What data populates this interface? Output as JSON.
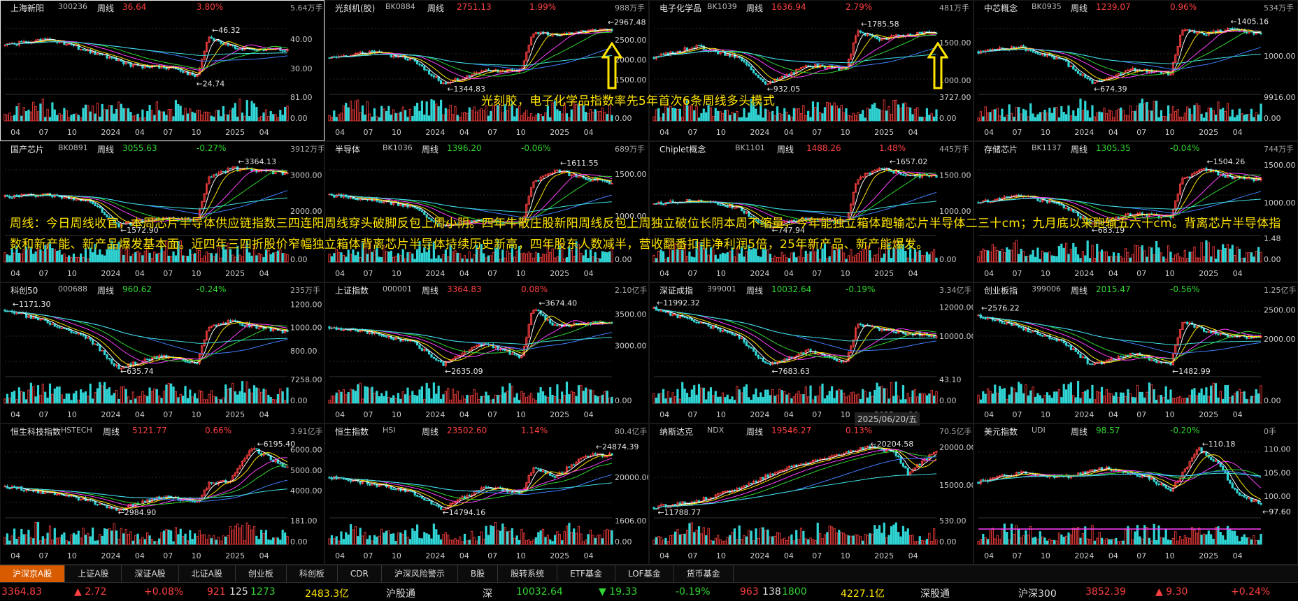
{
  "panels": [
    {
      "name": "上海新阳",
      "code": "300236",
      "period": "周线",
      "price": "36.64",
      "change": "3.80%",
      "dir": "up",
      "vol": "5.64万手",
      "hi": "46.32",
      "lo": "24.74",
      "yticks": [
        "40.00",
        "30.00"
      ],
      "vticks": [
        "81.00",
        "0.00"
      ],
      "xticks": [
        "04",
        "07",
        "10",
        "2024",
        "04",
        "07",
        "10",
        "2025",
        "04"
      ],
      "trend": [
        [
          0,
          38
        ],
        [
          0.15,
          40
        ],
        [
          0.3,
          36
        ],
        [
          0.45,
          31
        ],
        [
          0.6,
          30
        ],
        [
          0.68,
          27
        ],
        [
          0.72,
          41
        ],
        [
          0.78,
          38
        ],
        [
          0.88,
          36
        ],
        [
          1,
          36.6
        ]
      ],
      "ymin": 22,
      "ymax": 48
    },
    {
      "name": "光刻机(胶)",
      "code": "BK0884",
      "period": "周线",
      "price": "2751.13",
      "change": "1.99%",
      "dir": "up",
      "vol": "988万手",
      "hi": "2967.48",
      "lo": "1344.83",
      "yticks": [
        "2500.00",
        "2000.00",
        "1500.00"
      ],
      "vticks": [
        "0.00"
      ],
      "xticks": [
        "04",
        "07",
        "10",
        "2024",
        "04",
        "07",
        "10",
        "2025",
        "04"
      ],
      "trend": [
        [
          0,
          2050
        ],
        [
          0.15,
          2200
        ],
        [
          0.3,
          2000
        ],
        [
          0.4,
          1400
        ],
        [
          0.55,
          1700
        ],
        [
          0.68,
          1750
        ],
        [
          0.72,
          2700
        ],
        [
          0.8,
          2600
        ],
        [
          0.9,
          2700
        ],
        [
          1,
          2751
        ]
      ],
      "ymin": 1200,
      "ymax": 3100
    },
    {
      "name": "电子化学品",
      "code": "BK1039",
      "period": "周线",
      "price": "1636.94",
      "change": "2.79%",
      "dir": "up",
      "vol": "481万手",
      "hi": "1785.58",
      "lo": "932.05",
      "yticks": [
        "1500.00",
        "1000.00"
      ],
      "vticks": [
        "3727.00",
        "0.00"
      ],
      "xticks": [
        "04",
        "07",
        "10",
        "2024",
        "04",
        "07",
        "10",
        "2025",
        "04"
      ],
      "trend": [
        [
          0,
          1300
        ],
        [
          0.15,
          1450
        ],
        [
          0.3,
          1300
        ],
        [
          0.4,
          950
        ],
        [
          0.55,
          1200
        ],
        [
          0.68,
          1150
        ],
        [
          0.72,
          1650
        ],
        [
          0.8,
          1550
        ],
        [
          0.9,
          1600
        ],
        [
          1,
          1637
        ]
      ],
      "ymin": 850,
      "ymax": 1850
    },
    {
      "name": "中芯概念",
      "code": "BK0935",
      "period": "周线",
      "price": "1239.07",
      "change": "0.96%",
      "dir": "up",
      "vol": "534万手",
      "hi": "1405.16",
      "lo": "674.39",
      "yticks": [
        "1000.00"
      ],
      "vticks": [
        "9916.00",
        "0.00"
      ],
      "xticks": [
        "04",
        "07",
        "10",
        "2024",
        "04",
        "07",
        "10",
        "2025",
        "04"
      ],
      "trend": [
        [
          0,
          1050
        ],
        [
          0.15,
          1100
        ],
        [
          0.3,
          950
        ],
        [
          0.4,
          700
        ],
        [
          0.55,
          850
        ],
        [
          0.68,
          800
        ],
        [
          0.72,
          1300
        ],
        [
          0.8,
          1250
        ],
        [
          0.9,
          1300
        ],
        [
          1,
          1239
        ]
      ],
      "ymin": 600,
      "ymax": 1450
    },
    {
      "name": "国产芯片",
      "code": "BK0891",
      "period": "周线",
      "price": "3055.63",
      "change": "-0.27%",
      "dir": "dn",
      "vol": "3912万手",
      "hi": "3364.13",
      "lo": "1572.90",
      "yticks": [
        "3000.00",
        "2000.00"
      ],
      "vticks": [
        "0.00"
      ],
      "xticks": [
        "04",
        "07",
        "10",
        "2024",
        "04",
        "07",
        "10",
        "2025",
        "04"
      ],
      "trend": [
        [
          0,
          2400
        ],
        [
          0.15,
          2450
        ],
        [
          0.3,
          2300
        ],
        [
          0.4,
          1600
        ],
        [
          0.55,
          1800
        ],
        [
          0.68,
          1750
        ],
        [
          0.72,
          2900
        ],
        [
          0.8,
          3200
        ],
        [
          0.9,
          3100
        ],
        [
          1,
          3055
        ]
      ],
      "ymin": 1400,
      "ymax": 3500
    },
    {
      "name": "半导体",
      "code": "BK1036",
      "period": "周线",
      "price": "1396.20",
      "change": "-0.06%",
      "dir": "dn",
      "vol": "689万手",
      "hi": "1611.55",
      "lo": "",
      "yticks": [
        "1500.00",
        "1000.00"
      ],
      "vticks": [
        "0.00"
      ],
      "xticks": [
        "04",
        "07",
        "10",
        "2024",
        "04",
        "07",
        "10",
        "2025",
        "04"
      ],
      "trend": [
        [
          0,
          1250
        ],
        [
          0.15,
          1200
        ],
        [
          0.3,
          1100
        ],
        [
          0.4,
          870
        ],
        [
          0.55,
          950
        ],
        [
          0.68,
          900
        ],
        [
          0.72,
          1400
        ],
        [
          0.8,
          1550
        ],
        [
          0.9,
          1450
        ],
        [
          1,
          1396
        ]
      ],
      "ymin": 800,
      "ymax": 1700
    },
    {
      "name": "Chiplet概念",
      "code": "BK1101",
      "period": "周线",
      "price": "1488.26",
      "change": "1.48%",
      "dir": "up",
      "vol": "445万手",
      "hi": "1657.02",
      "lo": "747.94",
      "yticks": [
        "1500.00",
        "1000.00"
      ],
      "vticks": [
        "0.00"
      ],
      "xticks": [
        "04",
        "07",
        "10",
        "2024",
        "04",
        "07",
        "10",
        "2025",
        "04"
      ],
      "trend": [
        [
          0,
          1100
        ],
        [
          0.15,
          1150
        ],
        [
          0.3,
          1050
        ],
        [
          0.4,
          780
        ],
        [
          0.55,
          900
        ],
        [
          0.68,
          850
        ],
        [
          0.72,
          1450
        ],
        [
          0.8,
          1600
        ],
        [
          0.9,
          1500
        ],
        [
          1,
          1488
        ]
      ],
      "ymin": 700,
      "ymax": 1750
    },
    {
      "name": "存储芯片",
      "code": "BK1137",
      "period": "周线",
      "price": "1305.35",
      "change": "-0.04%",
      "dir": "dn",
      "vol": "744万手",
      "hi": "1504.26",
      "lo": "683.19",
      "yticks": [
        "1500.00",
        "1000.00"
      ],
      "vticks": [
        "1.48",
        "0.00"
      ],
      "xticks": [
        "04",
        "07",
        "10",
        "2024",
        "04",
        "07",
        "10",
        "2025",
        "04"
      ],
      "trend": [
        [
          0,
          1000
        ],
        [
          0.15,
          1100
        ],
        [
          0.3,
          950
        ],
        [
          0.4,
          720
        ],
        [
          0.55,
          850
        ],
        [
          0.68,
          800
        ],
        [
          0.72,
          1300
        ],
        [
          0.8,
          1450
        ],
        [
          0.9,
          1320
        ],
        [
          1,
          1305
        ]
      ],
      "ymin": 600,
      "ymax": 1600
    },
    {
      "name": "科创50",
      "code": "000688",
      "period": "周线",
      "price": "960.62",
      "change": "-0.24%",
      "dir": "dn",
      "vol": "235万手",
      "hi": "1171.30",
      "lo": "635.74",
      "yticks": [
        "1200.00",
        "1000.00",
        "800.00"
      ],
      "vticks": [
        "7258.00",
        "0.00"
      ],
      "xticks": [
        "04",
        "07",
        "10",
        "2024",
        "04",
        "07",
        "10",
        "2025",
        "04"
      ],
      "trend": [
        [
          0,
          1150
        ],
        [
          0.15,
          1050
        ],
        [
          0.3,
          900
        ],
        [
          0.4,
          650
        ],
        [
          0.55,
          750
        ],
        [
          0.68,
          700
        ],
        [
          0.72,
          1000
        ],
        [
          0.8,
          1050
        ],
        [
          0.9,
          1000
        ],
        [
          1,
          960
        ]
      ],
      "ymin": 600,
      "ymax": 1250
    },
    {
      "name": "上证指数",
      "code": "000001",
      "period": "周线",
      "price": "3364.83",
      "change": "0.08%",
      "dir": "up",
      "vol": "2.10亿手",
      "hi": "3674.40",
      "lo": "2635.09",
      "yticks": [
        "3500.00",
        "3000.00"
      ],
      "vticks": [
        "0.00"
      ],
      "xticks": [
        "04",
        "07",
        "10",
        "2024",
        "04",
        "07",
        "10",
        "2025",
        "04"
      ],
      "trend": [
        [
          0,
          3300
        ],
        [
          0.15,
          3200
        ],
        [
          0.3,
          3050
        ],
        [
          0.4,
          2700
        ],
        [
          0.55,
          3050
        ],
        [
          0.68,
          2800
        ],
        [
          0.72,
          3600
        ],
        [
          0.8,
          3300
        ],
        [
          0.9,
          3350
        ],
        [
          1,
          3365
        ]
      ],
      "ymin": 2550,
      "ymax": 3750
    },
    {
      "name": "深证成指",
      "code": "399001",
      "period": "周线",
      "price": "10032.64",
      "change": "-0.19%",
      "dir": "dn",
      "vol": "3.34亿手",
      "hi": "11992.32",
      "lo": "7683.63",
      "yticks": [
        "12000.00",
        "10000.00"
      ],
      "vticks": [
        "43.10",
        "0.00"
      ],
      "xticks": [
        "04",
        "07",
        "10",
        "2024",
        "04",
        "07",
        "10",
        "2025",
        "04"
      ],
      "trend": [
        [
          0,
          11900
        ],
        [
          0.15,
          11000
        ],
        [
          0.3,
          10000
        ],
        [
          0.4,
          8000
        ],
        [
          0.55,
          9000
        ],
        [
          0.68,
          8200
        ],
        [
          0.72,
          10800
        ],
        [
          0.8,
          10500
        ],
        [
          0.9,
          10200
        ],
        [
          1,
          10033
        ]
      ],
      "ymin": 7400,
      "ymax": 12600
    },
    {
      "name": "创业板指",
      "code": "399006",
      "period": "周线",
      "price": "2015.47",
      "change": "-0.56%",
      "dir": "dn",
      "vol": "1.25亿手",
      "hi": "2576.22",
      "lo": "1482.99",
      "yticks": [
        "2500.00",
        "2000.00"
      ],
      "vticks": [
        "0.00"
      ],
      "xticks": [
        "04",
        "07",
        "10",
        "2024",
        "04",
        "07",
        "10",
        "2025",
        "04"
      ],
      "trend": [
        [
          0,
          2400
        ],
        [
          0.15,
          2200
        ],
        [
          0.3,
          1950
        ],
        [
          0.4,
          1550
        ],
        [
          0.55,
          1750
        ],
        [
          0.68,
          1550
        ],
        [
          0.72,
          2300
        ],
        [
          0.8,
          2150
        ],
        [
          0.9,
          2050
        ],
        [
          1,
          2015
        ]
      ],
      "ymin": 1400,
      "ymax": 2700
    },
    {
      "name": "恒生科技指数",
      "code": "HSTECH",
      "period": "周线",
      "price": "5121.77",
      "change": "0.66%",
      "dir": "up",
      "vol": "3.91亿手",
      "hi": "6195.40",
      "lo": "2984.90",
      "yticks": [
        "6000.00",
        "5000.00",
        "4000.00"
      ],
      "vticks": [
        "181.00",
        "0.00"
      ],
      "xticks": [
        "04",
        "07",
        "10",
        "2024",
        "04",
        "07",
        "10",
        "2025",
        "04"
      ],
      "trend": [
        [
          0,
          4200
        ],
        [
          0.15,
          3900
        ],
        [
          0.3,
          3500
        ],
        [
          0.4,
          3050
        ],
        [
          0.55,
          3700
        ],
        [
          0.68,
          3500
        ],
        [
          0.72,
          4300
        ],
        [
          0.8,
          4500
        ],
        [
          0.87,
          6100
        ],
        [
          1,
          5122
        ]
      ],
      "ymin": 2800,
      "ymax": 6500
    },
    {
      "name": "恒生指数",
      "code": "HSI",
      "period": "周线",
      "price": "23502.60",
      "change": "1.14%",
      "dir": "up",
      "vol": "80.4亿手",
      "hi": "24874.39",
      "lo": "14794.16",
      "yticks": [
        "20000.00"
      ],
      "vticks": [
        "1606.00",
        "0.00"
      ],
      "xticks": [
        "04",
        "07",
        "10",
        "2024",
        "04",
        "07",
        "10",
        "2025",
        "04"
      ],
      "trend": [
        [
          0,
          20000
        ],
        [
          0.15,
          19000
        ],
        [
          0.3,
          17500
        ],
        [
          0.4,
          15000
        ],
        [
          0.55,
          18500
        ],
        [
          0.68,
          17500
        ],
        [
          0.72,
          21500
        ],
        [
          0.8,
          20000
        ],
        [
          0.9,
          23500
        ],
        [
          1,
          23503
        ]
      ],
      "ymin": 14000,
      "ymax": 26000
    },
    {
      "name": "纳斯达克",
      "code": "NDX",
      "period": "周线",
      "price": "19546.27",
      "change": "0.13%",
      "dir": "up",
      "vol": "70.5亿手",
      "hi": "20204.58",
      "lo": "11788.77",
      "yticks": [
        "20000.00",
        "15000.00"
      ],
      "vticks": [
        "530.00",
        "0.00"
      ],
      "xticks": [
        "04",
        "07",
        "10",
        "2024",
        "04",
        "07",
        "10",
        "2025",
        "04"
      ],
      "trend": [
        [
          0,
          12000
        ],
        [
          0.15,
          12800
        ],
        [
          0.3,
          14500
        ],
        [
          0.45,
          17000
        ],
        [
          0.6,
          18500
        ],
        [
          0.75,
          20000
        ],
        [
          0.85,
          19500
        ],
        [
          0.9,
          16500
        ],
        [
          1,
          19546
        ]
      ],
      "ymin": 11000,
      "ymax": 21000
    },
    {
      "name": "美元指数",
      "code": "UDI",
      "period": "周线",
      "price": "98.57",
      "change": "-0.20%",
      "dir": "dn",
      "vol": "0手",
      "hi": "110.18",
      "lo": "97.60",
      "yticks": [
        "110.00",
        "105.00",
        "100.00"
      ],
      "vticks": [],
      "xticks": [
        "04",
        "07",
        "10",
        "2024",
        "04",
        "07",
        "10",
        "2025",
        "04"
      ],
      "trend": [
        [
          0,
          103
        ],
        [
          0.15,
          105
        ],
        [
          0.3,
          104
        ],
        [
          0.45,
          106
        ],
        [
          0.6,
          104
        ],
        [
          0.68,
          101
        ],
        [
          0.78,
          110
        ],
        [
          0.85,
          107
        ],
        [
          0.92,
          100
        ],
        [
          1,
          98.6
        ]
      ],
      "ymin": 96,
      "ymax": 112
    }
  ],
  "overlay_title": "光刻胶，电子化学品指数率先5年首次6条周线多头模式",
  "overlay_body": "周线：今日周线收官，本周芯片半导体供应链指数三四连阳周线穿头破脚反包上周小阴。四年牛散庄股新阳周线反包上周独立破位长阴本周不缩量，今年能独立箱体跑输芯片半导体二三十cm；九月底以来跑输五六十cm。背离芯片半导体指数和新产能、新产品爆发基本面。近四年三四折股价窄幅独立箱体背离芯片半导体持续历史新高，四年股东人数减半，营收翻番扣非净利润5倍，25年新产品、新产能爆发。",
  "date_label": "2025/06/20/五",
  "tabs": [
    "沪深京A股",
    "上证A股",
    "深证A股",
    "北证A股",
    "创业板",
    "科创板",
    "CDR",
    "沪深风险警示",
    "B股",
    "股转系统",
    "ETF基金",
    "LOF基金",
    "货币基金"
  ],
  "status": {
    "sh_index": "3364.83",
    "sh_chg": "▲ 2.72",
    "sh_pct": "+0.08%",
    "sh_up": "921",
    "sh_flat": "125",
    "sh_down": "1273",
    "sh_amt": "2483.3亿",
    "sh_tong": "沪股通",
    "sz_label": "深",
    "sz_index": "10032.64",
    "sz_chg": "▼ 19.33",
    "sz_pct": "-0.19%",
    "sz_up": "963",
    "sz_flat": "138",
    "sz_down": "1800",
    "sz_amt": "4227.1亿",
    "sz_tong": "深股通",
    "hs300_label": "沪深300",
    "hs300": "3852.39",
    "hs300_chg": "▲ 9.30",
    "hs300_pct": "+0.24%"
  },
  "colors": {
    "up": "#ff4040",
    "down": "#31d631",
    "accent": "#ffe400",
    "tab_active": "#d95b00"
  }
}
